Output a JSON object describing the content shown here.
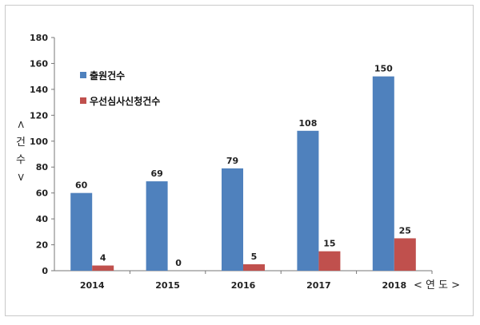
{
  "chart_data": {
    "type": "bar",
    "categories": [
      "2014",
      "2015",
      "2016",
      "2017",
      "2018"
    ],
    "series": [
      {
        "name": "출원건수",
        "values": [
          60,
          69,
          79,
          108,
          150
        ],
        "color": "#4f81bd"
      },
      {
        "name": "우선심사신청건수",
        "values": [
          4,
          0,
          5,
          15,
          25
        ],
        "color": "#c0504d"
      }
    ],
    "ylim": [
      0,
      180
    ],
    "yticks": [
      0,
      20,
      40,
      60,
      80,
      100,
      120,
      140,
      160,
      180
    ],
    "ylabel": "< 건 수 >",
    "xlabel": "< 연 도 >",
    "legend_position": "top-left",
    "grid": false
  }
}
